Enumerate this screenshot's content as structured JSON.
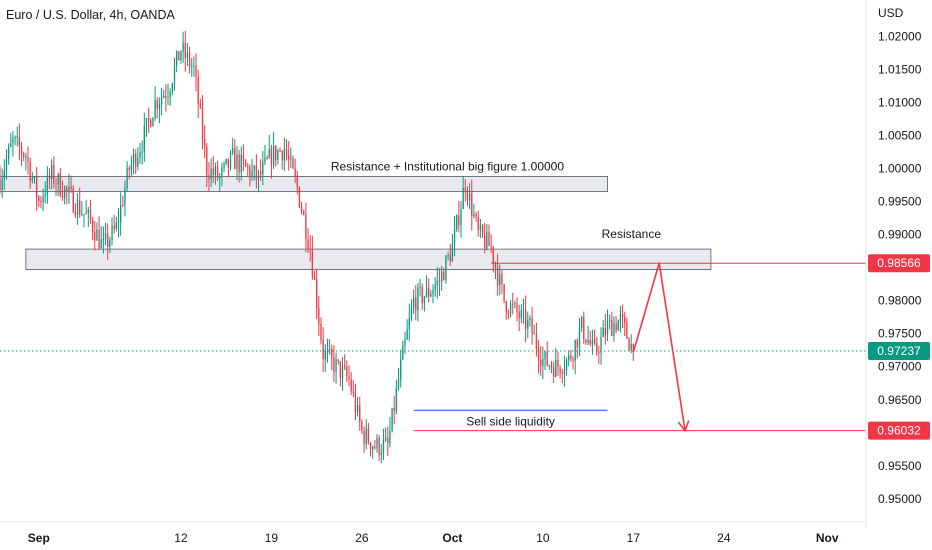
{
  "header": {
    "title": "Euro / U.S. Dollar, 4h, OANDA",
    "currency": "USD"
  },
  "chart_data": {
    "type": "candlestick",
    "symbol_title": "Euro / U.S. Dollar, 4h, OANDA",
    "y_axis_unit": "USD",
    "ylim": [
      0.9465,
      1.0255
    ],
    "y_ticks": [
      "1.02000",
      "1.01500",
      "1.01000",
      "1.00500",
      "1.00000",
      "0.99500",
      "0.99000",
      "0.98500",
      "0.98000",
      "0.97500",
      "0.97000",
      "0.96500",
      "0.96000",
      "0.95500",
      "0.95000"
    ],
    "x_ticks": [
      "Sep",
      "12",
      "19",
      "26",
      "Oct",
      "10",
      "17",
      "24",
      "Nov"
    ],
    "x_tick_dates": [
      "2022-09-01",
      "2022-09-12",
      "2022-09-19",
      "2022-09-26",
      "2022-10-03",
      "2022-10-10",
      "2022-10-17",
      "2022-10-24",
      "2022-11-01"
    ],
    "xlim": [
      "2022-08-29",
      "2022-11-04"
    ],
    "price_path": [
      {
        "x": "2022-08-29",
        "close": 0.9985
      },
      {
        "x": "2022-08-30",
        "close": 1.004
      },
      {
        "x": "2022-08-31",
        "close": 1.002
      },
      {
        "x": "2022-09-01",
        "close": 0.995
      },
      {
        "x": "2022-09-02",
        "close": 0.999
      },
      {
        "x": "2022-09-05",
        "close": 0.992
      },
      {
        "x": "2022-09-06",
        "close": 0.988
      },
      {
        "x": "2022-09-07",
        "close": 0.991
      },
      {
        "x": "2022-09-08",
        "close": 1.0
      },
      {
        "x": "2022-09-09",
        "close": 1.004
      },
      {
        "x": "2022-09-10",
        "close": 1.01
      },
      {
        "x": "2022-09-11",
        "close": 1.012
      },
      {
        "x": "2022-09-12",
        "close": 1.018
      },
      {
        "x": "2022-09-13",
        "close": 1.015
      },
      {
        "x": "2022-09-14",
        "close": 1.0
      },
      {
        "x": "2022-09-15",
        "close": 0.9985
      },
      {
        "x": "2022-09-16",
        "close": 1.0015
      },
      {
        "x": "2022-09-17",
        "close": 1.0
      },
      {
        "x": "2022-09-18",
        "close": 0.9985
      },
      {
        "x": "2022-09-19",
        "close": 1.002
      },
      {
        "x": "2022-09-20",
        "close": 1.003
      },
      {
        "x": "2022-09-21",
        "close": 0.997
      },
      {
        "x": "2022-09-22",
        "close": 0.988
      },
      {
        "x": "2022-09-23",
        "close": 0.972
      },
      {
        "x": "2022-09-24",
        "close": 0.97
      },
      {
        "x": "2022-09-25",
        "close": 0.968
      },
      {
        "x": "2022-09-26",
        "close": 0.96
      },
      {
        "x": "2022-09-27",
        "close": 0.958
      },
      {
        "x": "2022-09-28",
        "close": 0.958
      },
      {
        "x": "2022-09-29",
        "close": 0.97
      },
      {
        "x": "2022-09-30",
        "close": 0.98
      },
      {
        "x": "2022-10-01",
        "close": 0.981
      },
      {
        "x": "2022-10-02",
        "close": 0.983
      },
      {
        "x": "2022-10-03",
        "close": 0.988
      },
      {
        "x": "2022-10-04",
        "close": 0.998
      },
      {
        "x": "2022-10-05",
        "close": 0.99
      },
      {
        "x": "2022-10-06",
        "close": 0.988
      },
      {
        "x": "2022-10-07",
        "close": 0.98
      },
      {
        "x": "2022-10-08",
        "close": 0.978
      },
      {
        "x": "2022-10-09",
        "close": 0.976
      },
      {
        "x": "2022-10-10",
        "close": 0.971
      },
      {
        "x": "2022-10-11",
        "close": 0.97
      },
      {
        "x": "2022-10-12",
        "close": 0.971
      },
      {
        "x": "2022-10-13",
        "close": 0.976
      },
      {
        "x": "2022-10-14",
        "close": 0.972
      },
      {
        "x": "2022-10-15",
        "close": 0.976
      },
      {
        "x": "2022-10-16",
        "close": 0.977
      },
      {
        "x": "2022-10-17",
        "close": 0.9724
      }
    ],
    "annotations": [
      {
        "label": "Resistance + Institutional big figure 1.00000",
        "kind": "zone",
        "y_low": 0.9965,
        "y_high": 0.9988,
        "x_start": "2022-08-29",
        "x_end": "2022-10-15"
      },
      {
        "label": "Resistance",
        "kind": "zone",
        "y_low": 0.9847,
        "y_high": 0.9878,
        "x_start": "2022-08-31",
        "x_end": "2022-10-23"
      },
      {
        "label": "Sell side liquidity",
        "kind": "line",
        "y": 0.9634,
        "x_start": "2022-09-30",
        "x_end": "2022-10-15"
      }
    ],
    "price_levels": [
      {
        "label": "0.98566",
        "value": 0.98566,
        "color": "#f23645",
        "x_start": "2022-10-06"
      },
      {
        "label": "0.97237",
        "value": 0.97237,
        "color": "#089981",
        "style": "dotted"
      },
      {
        "label": "0.96032",
        "value": 0.96032,
        "color": "#f23645",
        "x_start": "2022-09-30"
      }
    ],
    "projection": {
      "color": "#f23645",
      "points": [
        {
          "x": "2022-10-17",
          "y": 0.9722
        },
        {
          "x": "2022-10-19",
          "y": 0.9857
        },
        {
          "x": "2022-10-21",
          "y": 0.9603
        }
      ]
    },
    "colors": {
      "up": "#089981",
      "down": "#f23645",
      "zone_fill": "#e0e3eb",
      "zone_border": "#555a66",
      "liquidity_line": "#2962ff"
    },
    "grid": false
  }
}
